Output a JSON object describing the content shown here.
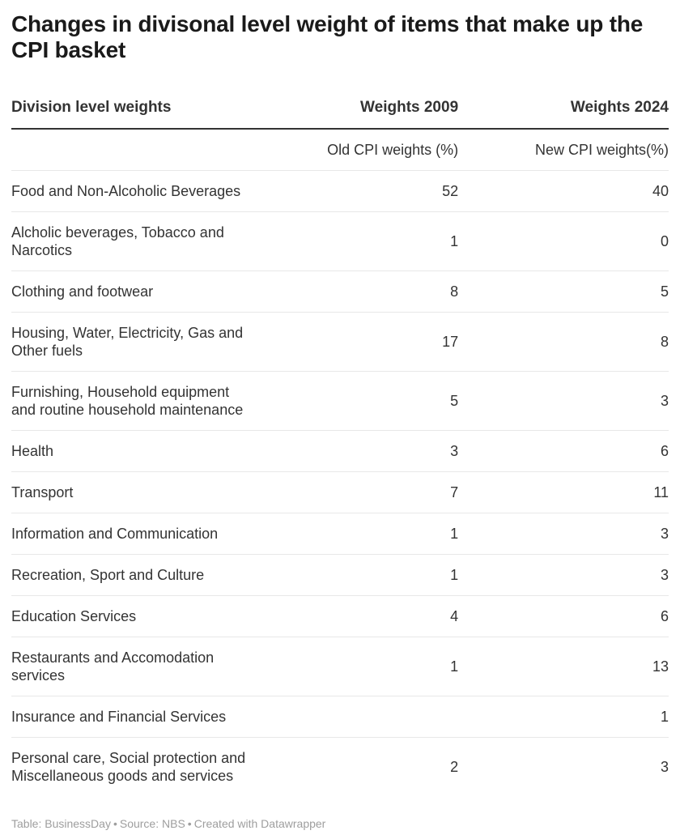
{
  "title": "Changes in divisonal level weight of items that make up the CPI basket",
  "colors": {
    "title_text": "#1a1a1a",
    "body_text": "#333333",
    "header_rule": "#333333",
    "row_border": "#e8e8e8",
    "footer_text": "#9e9e9e",
    "background": "#ffffff"
  },
  "table": {
    "columns": [
      "Division level weights",
      "Weights 2009",
      "Weights 2024"
    ],
    "subheaders": [
      "",
      "Old CPI weights (%)",
      "New CPI weights(%)"
    ],
    "rows": [
      {
        "label": "Food and Non-Alcoholic Beverages",
        "weight_2009": "52",
        "weight_2024": "40"
      },
      {
        "label": "Alcholic beverages, Tobacco and\nNarcotics",
        "weight_2009": "1",
        "weight_2024": "0"
      },
      {
        "label": "Clothing and footwear",
        "weight_2009": "8",
        "weight_2024": "5"
      },
      {
        "label": "Housing, Water, Electricity, Gas and\nOther fuels",
        "weight_2009": "17",
        "weight_2024": "8"
      },
      {
        "label": "Furnishing, Household equipment\nand routine household maintenance",
        "weight_2009": "5",
        "weight_2024": "3"
      },
      {
        "label": "Health",
        "weight_2009": "3",
        "weight_2024": "6"
      },
      {
        "label": "Transport",
        "weight_2009": "7",
        "weight_2024": "11"
      },
      {
        "label": "Information and Communication",
        "weight_2009": "1",
        "weight_2024": "3"
      },
      {
        "label": "Recreation, Sport and Culture",
        "weight_2009": "1",
        "weight_2024": "3"
      },
      {
        "label": "Education Services",
        "weight_2009": "4",
        "weight_2024": "6"
      },
      {
        "label": "Restaurants and Accomodation\nservices",
        "weight_2009": "1",
        "weight_2024": "13"
      },
      {
        "label": "Insurance and Financial Services",
        "weight_2009": "",
        "weight_2024": "1"
      },
      {
        "label": "Personal care, Social protection and\nMiscellaneous goods and services",
        "weight_2009": "2",
        "weight_2024": "3"
      }
    ]
  },
  "footer": {
    "table_credit": "Table: BusinessDay",
    "source": "Source: NBS",
    "created_with": "Created with Datawrapper",
    "separator": "•"
  },
  "chart_data": {
    "type": "table",
    "title": "Changes in divisonal level weight of items that make up the CPI basket",
    "columns": [
      "Division level weights",
      "Weights 2009 — Old CPI weights (%)",
      "Weights 2024 — New CPI weights(%)"
    ],
    "categories": [
      "Food and Non-Alcoholic Beverages",
      "Alcholic beverages, Tobacco and Narcotics",
      "Clothing and footwear",
      "Housing, Water, Electricity, Gas and Other fuels",
      "Furnishing, Household equipment and routine household maintenance",
      "Health",
      "Transport",
      "Information and Communication",
      "Recreation, Sport and Culture",
      "Education Services",
      "Restaurants and Accomodation services",
      "Insurance and Financial Services",
      "Personal care, Social protection and Miscellaneous goods and services"
    ],
    "series": [
      {
        "name": "Weights 2009 (Old CPI weights %)",
        "values": [
          52,
          1,
          8,
          17,
          5,
          3,
          7,
          1,
          1,
          4,
          1,
          null,
          2
        ]
      },
      {
        "name": "Weights 2024 (New CPI weights %)",
        "values": [
          40,
          0,
          5,
          8,
          3,
          6,
          11,
          3,
          3,
          6,
          13,
          1,
          3
        ]
      }
    ]
  }
}
